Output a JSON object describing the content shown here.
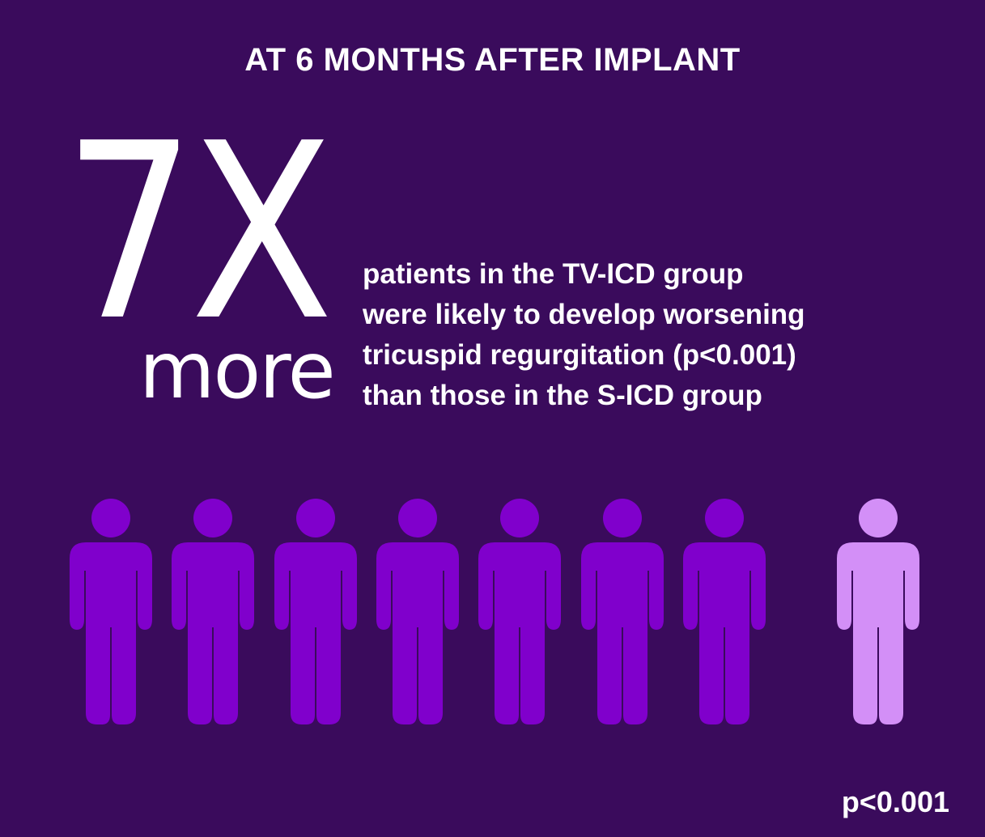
{
  "heading": "AT 6 MONTHS AFTER IMPLANT",
  "stat": {
    "multiplier": "7X",
    "qualifier": "more"
  },
  "description": [
    "patients in the TV-ICD group",
    "were likely to develop worsening",
    "tricuspid regurgitation (p<0.001)",
    "than those in the S-ICD group"
  ],
  "figures": {
    "icon": "person-icon",
    "tv_icd_count": 7,
    "s_icd_count": 1,
    "tv_icd_color": "#8000cc",
    "s_icd_color": "#d38ff7"
  },
  "footer_pvalue": "p<0.001",
  "colors": {
    "background": "#3a0b5c",
    "text": "#ffffff"
  }
}
